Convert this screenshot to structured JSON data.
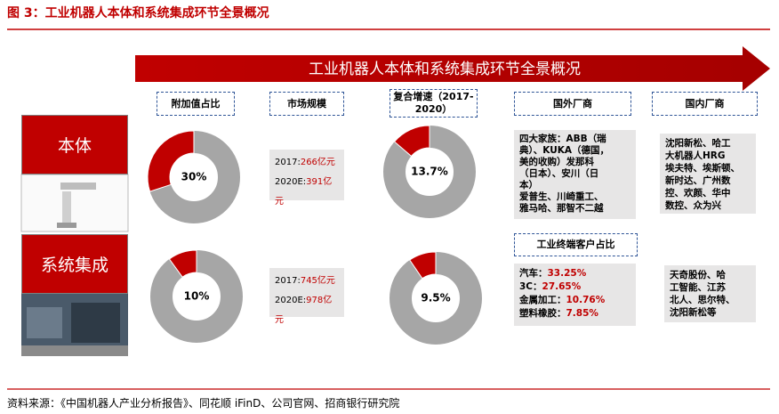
{
  "title": "图 3：工业机器人本体和系统集成环节全景概况",
  "banner": "工业机器人本体和系统集成环节全景概况",
  "headers": [
    "附加值占比",
    "市场规模",
    "复合增速（2017-2020）",
    "国外厂商",
    "国内厂商"
  ],
  "rows": [
    {
      "name": "本体",
      "value_share": {
        "value": 30,
        "label": "30%"
      },
      "market": [
        {
          "label": "2017:",
          "value": "266亿元"
        },
        {
          "label": "2020E:",
          "value": "391亿元"
        }
      ],
      "growth": {
        "value": 13.7,
        "label": "13.7%"
      },
      "foreign": [
        "四大家族：ABB（瑞",
        "典）、KUKA（德国，",
        "美的收购）发那科",
        "（日本）、安川（日",
        "本）",
        "爱普生、川崎重工、",
        "雅马哈、那智不二越"
      ],
      "domestic": [
        "沈阳新松、哈工",
        "大机器人HRG",
        "埃夫特、埃斯顿、",
        "新时达、广州数",
        "控、欢颜、华中",
        "数控、众为兴"
      ]
    },
    {
      "name": "系统集成",
      "value_share": {
        "value": 10,
        "label": "10%"
      },
      "market": [
        {
          "label": "2017:",
          "value": "745亿元"
        },
        {
          "label": "2020E:",
          "value": "978亿元"
        }
      ],
      "growth": {
        "value": 9.5,
        "label": "9.5%"
      },
      "customer_header": "工业终端客户占比",
      "customers": [
        {
          "label": "汽车：",
          "value": "33.25%"
        },
        {
          "label": "3C：",
          "value": "27.65%"
        },
        {
          "label": "金属加工：",
          "value": "10.76%"
        },
        {
          "label": "塑料橡胶：",
          "value": "7.85%"
        }
      ],
      "domestic": [
        "天奇股份、哈",
        "工智能、江苏",
        "北人、思尔特、",
        "沈阳新松等"
      ]
    }
  ],
  "source": "资料来源：《中国机器人产业分析报告》、同花顺 iFinD、公司官网、招商银行研究院"
}
